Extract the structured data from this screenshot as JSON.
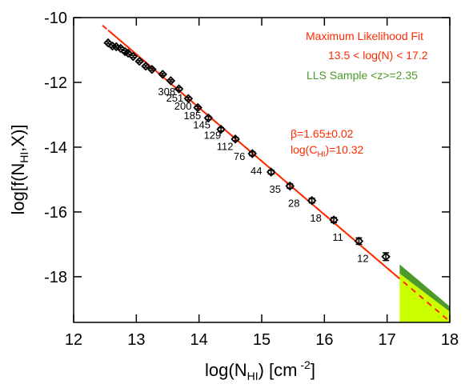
{
  "chart_data": {
    "type": "scatter",
    "xlabel": [
      "log(N",
      "HI",
      ") [cm",
      " -2",
      "]"
    ],
    "ylabel": [
      "log[f(N",
      "HI",
      ",X)]"
    ],
    "xlim": [
      12,
      18
    ],
    "ylim": [
      -19.41,
      -10
    ],
    "xticks": [
      12,
      13,
      14,
      15,
      16,
      17,
      18
    ],
    "yticks": [
      -10,
      -12,
      -14,
      -16,
      -18
    ],
    "points": {
      "color": "#000000",
      "x": [
        12.55,
        12.62,
        12.68,
        12.75,
        12.82,
        12.87,
        12.95,
        13.05,
        13.15,
        13.25,
        13.42,
        13.55,
        13.68,
        13.83,
        13.98,
        14.15,
        14.35,
        14.58,
        14.85,
        15.15,
        15.45,
        15.8,
        16.15,
        16.55,
        16.98
      ],
      "values": [
        -10.78,
        -10.88,
        -10.9,
        -10.95,
        -11.05,
        -11.1,
        -11.2,
        -11.35,
        -11.5,
        -11.6,
        -11.75,
        -11.95,
        -12.2,
        -12.5,
        -12.78,
        -13.1,
        -13.45,
        -13.75,
        -14.2,
        -14.77,
        -15.2,
        -15.65,
        -16.25,
        -16.9,
        -17.38
      ],
      "errors": [
        0.03,
        0.03,
        0.03,
        0.03,
        0.03,
        0.03,
        0.03,
        0.03,
        0.03,
        0.03,
        0.03,
        0.03,
        0.04,
        0.04,
        0.04,
        0.05,
        0.05,
        0.05,
        0.06,
        0.06,
        0.07,
        0.07,
        0.08,
        0.1,
        0.12
      ],
      "counts": [
        null,
        null,
        null,
        null,
        null,
        null,
        null,
        null,
        null,
        null,
        "308",
        "251",
        "200",
        "185",
        "145",
        "129",
        "112",
        "76",
        "44",
        "35",
        "28",
        "18",
        "11",
        "12",
        null
      ]
    },
    "fit": {
      "color": "#ff2a00",
      "x": [
        12.55,
        17.2
      ],
      "values": [
        -10.39,
        -18.06
      ]
    },
    "extrapolation": {
      "color": "#ff2a00",
      "x": [
        12.46,
        18
      ],
      "values": [
        -10.24,
        -19.38
      ]
    },
    "lls_region": {
      "color": "#ccff00",
      "band_color": "#4c9a2a",
      "x": [
        17.2,
        18
      ],
      "upper": [
        -17.62,
        -18.92
      ],
      "lower": [
        -17.9,
        -19.08
      ]
    },
    "annotations": {
      "fit_title": "Maximum Likelihood Fit",
      "fit_range": "13.5 < log(N) < 17.2",
      "lls": "LLS Sample <z>=2.35",
      "beta": "β=1.65±0.02",
      "logc": [
        "log(C",
        "HI",
        ")=10.32"
      ]
    }
  }
}
